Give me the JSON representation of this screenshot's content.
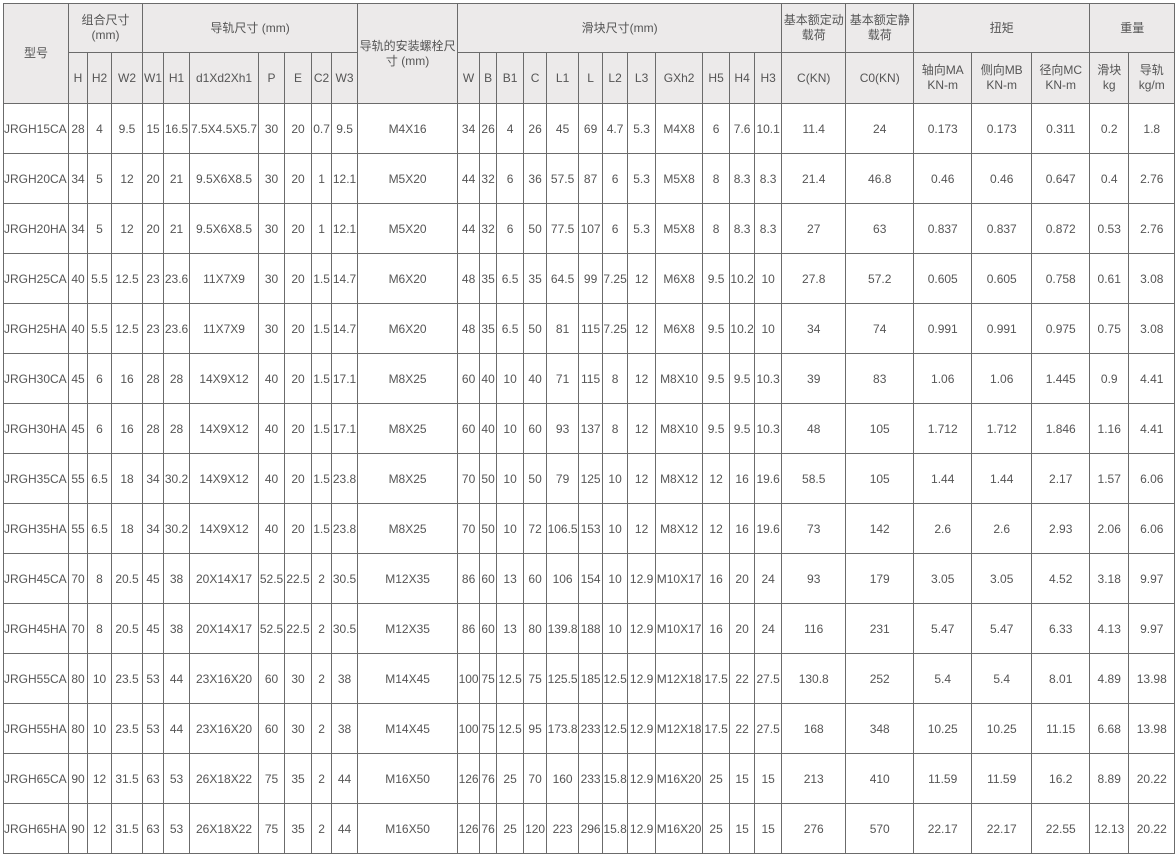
{
  "table": {
    "model_header": "型号",
    "groups": [
      {
        "label": "组合尺寸\n(mm)",
        "span": 3
      },
      {
        "label": "导轨尺寸 (mm)",
        "span": 7
      },
      {
        "label": "导轨的安装螺栓尺寸 (mm)",
        "span": 1,
        "rowspan": 2
      },
      {
        "label": "滑块尺寸(mm)",
        "span": 12
      },
      {
        "label": "基本额定动载荷",
        "span": 1
      },
      {
        "label": "基本额定静载荷",
        "span": 1
      },
      {
        "label": "扭矩",
        "span": 3
      },
      {
        "label": "重量",
        "span": 2
      }
    ],
    "subheaders": [
      "H",
      "H2",
      "W2",
      "W1",
      "H1",
      "d1Xd2Xh1",
      "P",
      "E",
      "C2",
      "W3",
      "W",
      "B",
      "B1",
      "C",
      "L1",
      "L",
      "L2",
      "L3",
      "GXh2",
      "H5",
      "H4",
      "H3",
      "C(KN)",
      "C0(KN)",
      "轴向MA KN-m",
      "侧向MB KN-m",
      "径向MC KN-m",
      "滑块 kg",
      "导轨 kg/m"
    ],
    "rows": [
      [
        "JRGH15CA",
        "28",
        "4",
        "9.5",
        "15",
        "16.5",
        "7.5X4.5X5.7",
        "30",
        "20",
        "0.7",
        "9.5",
        "M4X16",
        "34",
        "26",
        "4",
        "26",
        "45",
        "69",
        "4.7",
        "5.3",
        "M4X8",
        "6",
        "7.6",
        "10.1",
        "11.4",
        "24",
        "0.173",
        "0.173",
        "0.311",
        "0.2",
        "1.8"
      ],
      [
        "JRGH20CA",
        "34",
        "5",
        "12",
        "20",
        "21",
        "9.5X6X8.5",
        "30",
        "20",
        "1",
        "12.1",
        "M5X20",
        "44",
        "32",
        "6",
        "36",
        "57.5",
        "87",
        "6",
        "5.3",
        "M5X8",
        "8",
        "8.3",
        "8.3",
        "21.4",
        "46.8",
        "0.46",
        "0.46",
        "0.647",
        "0.4",
        "2.76"
      ],
      [
        "JRGH20HA",
        "34",
        "5",
        "12",
        "20",
        "21",
        "9.5X6X8.5",
        "30",
        "20",
        "1",
        "12.1",
        "M5X20",
        "44",
        "32",
        "6",
        "50",
        "77.5",
        "107",
        "6",
        "5.3",
        "M5X8",
        "8",
        "8.3",
        "8.3",
        "27",
        "63",
        "0.837",
        "0.837",
        "0.872",
        "0.53",
        "2.76"
      ],
      [
        "JRGH25CA",
        "40",
        "5.5",
        "12.5",
        "23",
        "23.6",
        "11X7X9",
        "30",
        "20",
        "1.5",
        "14.7",
        "M6X20",
        "48",
        "35",
        "6.5",
        "35",
        "64.5",
        "99",
        "7.25",
        "12",
        "M6X8",
        "9.5",
        "10.2",
        "10",
        "27.8",
        "57.2",
        "0.605",
        "0.605",
        "0.758",
        "0.61",
        "3.08"
      ],
      [
        "JRGH25HA",
        "40",
        "5.5",
        "12.5",
        "23",
        "23.6",
        "11X7X9",
        "30",
        "20",
        "1.5",
        "14.7",
        "M6X20",
        "48",
        "35",
        "6.5",
        "50",
        "81",
        "115",
        "7.25",
        "12",
        "M6X8",
        "9.5",
        "10.2",
        "10",
        "34",
        "74",
        "0.991",
        "0.991",
        "0.975",
        "0.75",
        "3.08"
      ],
      [
        "JRGH30CA",
        "45",
        "6",
        "16",
        "28",
        "28",
        "14X9X12",
        "40",
        "20",
        "1.5",
        "17.1",
        "M8X25",
        "60",
        "40",
        "10",
        "40",
        "71",
        "115",
        "8",
        "12",
        "M8X10",
        "9.5",
        "9.5",
        "10.3",
        "39",
        "83",
        "1.06",
        "1.06",
        "1.445",
        "0.9",
        "4.41"
      ],
      [
        "JRGH30HA",
        "45",
        "6",
        "16",
        "28",
        "28",
        "14X9X12",
        "40",
        "20",
        "1.5",
        "17.1",
        "M8X25",
        "60",
        "40",
        "10",
        "60",
        "93",
        "137",
        "8",
        "12",
        "M8X10",
        "9.5",
        "9.5",
        "10.3",
        "48",
        "105",
        "1.712",
        "1.712",
        "1.846",
        "1.16",
        "4.41"
      ],
      [
        "JRGH35CA",
        "55",
        "6.5",
        "18",
        "34",
        "30.2",
        "14X9X12",
        "40",
        "20",
        "1.5",
        "23.8",
        "M8X25",
        "70",
        "50",
        "10",
        "50",
        "79",
        "125",
        "10",
        "12",
        "M8X12",
        "12",
        "16",
        "19.6",
        "58.5",
        "105",
        "1.44",
        "1.44",
        "2.17",
        "1.57",
        "6.06"
      ],
      [
        "JRGH35HA",
        "55",
        "6.5",
        "18",
        "34",
        "30.2",
        "14X9X12",
        "40",
        "20",
        "1.5",
        "23.8",
        "M8X25",
        "70",
        "50",
        "10",
        "72",
        "106.5",
        "153",
        "10",
        "12",
        "M8X12",
        "12",
        "16",
        "19.6",
        "73",
        "142",
        "2.6",
        "2.6",
        "2.93",
        "2.06",
        "6.06"
      ],
      [
        "JRGH45CA",
        "70",
        "8",
        "20.5",
        "45",
        "38",
        "20X14X17",
        "52.5",
        "22.5",
        "2",
        "30.5",
        "M12X35",
        "86",
        "60",
        "13",
        "60",
        "106",
        "154",
        "10",
        "12.9",
        "M10X17",
        "16",
        "20",
        "24",
        "93",
        "179",
        "3.05",
        "3.05",
        "4.52",
        "3.18",
        "9.97"
      ],
      [
        "JRGH45HA",
        "70",
        "8",
        "20.5",
        "45",
        "38",
        "20X14X17",
        "52.5",
        "22.5",
        "2",
        "30.5",
        "M12X35",
        "86",
        "60",
        "13",
        "80",
        "139.8",
        "188",
        "10",
        "12.9",
        "M10X17",
        "16",
        "20",
        "24",
        "116",
        "231",
        "5.47",
        "5.47",
        "6.33",
        "4.13",
        "9.97"
      ],
      [
        "JRGH55CA",
        "80",
        "10",
        "23.5",
        "53",
        "44",
        "23X16X20",
        "60",
        "30",
        "2",
        "38",
        "M14X45",
        "100",
        "75",
        "12.5",
        "75",
        "125.5",
        "185",
        "12.5",
        "12.9",
        "M12X18",
        "17.5",
        "22",
        "27.5",
        "130.8",
        "252",
        "5.4",
        "5.4",
        "8.01",
        "4.89",
        "13.98"
      ],
      [
        "JRGH55HA",
        "80",
        "10",
        "23.5",
        "53",
        "44",
        "23X16X20",
        "60",
        "30",
        "2",
        "38",
        "M14X45",
        "100",
        "75",
        "12.5",
        "95",
        "173.8",
        "233",
        "12.5",
        "12.9",
        "M12X18",
        "17.5",
        "22",
        "27.5",
        "168",
        "348",
        "10.25",
        "10.25",
        "11.15",
        "6.68",
        "13.98"
      ],
      [
        "JRGH65CA",
        "90",
        "12",
        "31.5",
        "63",
        "53",
        "26X18X22",
        "75",
        "35",
        "2",
        "44",
        "M16X50",
        "126",
        "76",
        "25",
        "70",
        "160",
        "233",
        "15.8",
        "12.9",
        "M16X20",
        "25",
        "15",
        "15",
        "213",
        "410",
        "11.59",
        "11.59",
        "16.2",
        "8.89",
        "20.22"
      ],
      [
        "JRGH65HA",
        "90",
        "12",
        "31.5",
        "63",
        "53",
        "26X18X22",
        "75",
        "35",
        "2",
        "44",
        "M16X50",
        "126",
        "76",
        "25",
        "120",
        "223",
        "296",
        "15.8",
        "12.9",
        "M16X20",
        "25",
        "15",
        "15",
        "276",
        "570",
        "22.17",
        "22.17",
        "22.55",
        "12.13",
        "20.22"
      ]
    ]
  }
}
